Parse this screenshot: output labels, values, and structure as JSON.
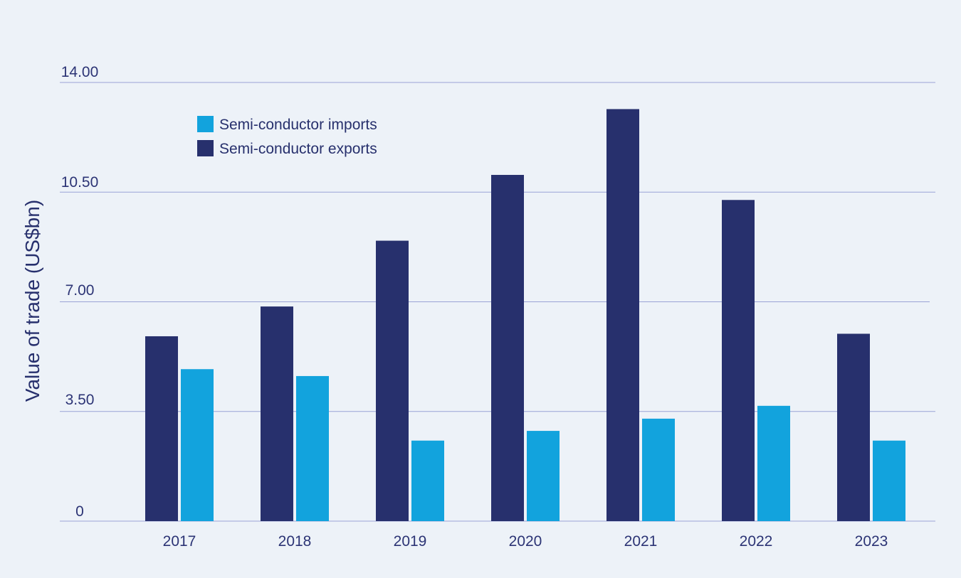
{
  "chart_data": {
    "type": "bar",
    "title": "",
    "xlabel": "",
    "ylabel": "Value of trade (US$bn)",
    "categories": [
      "2017",
      "2018",
      "2019",
      "2020",
      "2021",
      "2022",
      "2023"
    ],
    "series": [
      {
        "name": "Semi-conductor exports",
        "values": [
          5.9,
          6.85,
          8.95,
          11.05,
          13.15,
          10.25,
          5.98
        ],
        "color": "#27306d"
      },
      {
        "name": "Semi-conductor imports",
        "values": [
          4.85,
          4.63,
          2.57,
          2.88,
          3.27,
          3.68,
          2.57
        ],
        "color": "#12a3dd"
      }
    ],
    "y_ticks": [
      "0",
      "3.50",
      "7.00",
      "10.50",
      "14.00"
    ],
    "ylim": [
      0,
      14
    ],
    "grid": true,
    "legend_position": "top-left",
    "legend_order": [
      "Semi-conductor imports",
      "Semi-conductor exports"
    ],
    "axis_color": "#2c3475",
    "grid_color": "#9aa3d6",
    "background": "#edf2f8"
  }
}
